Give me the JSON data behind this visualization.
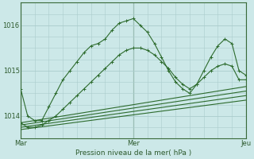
{
  "bg_color": "#cce8e8",
  "grid_color": "#aacccc",
  "line_color": "#2d6b2d",
  "marker_color": "#2d6b2d",
  "xlabel": "Pression niveau de la mer( hPa )",
  "xtick_labels": [
    "Mar",
    "Mer",
    "Jeu"
  ],
  "xtick_positions": [
    0,
    48,
    96
  ],
  "ylim": [
    1013.5,
    1016.5
  ],
  "ytick_positions": [
    1014,
    1015,
    1016
  ],
  "series": [
    {
      "x": [
        0,
        3,
        6,
        9,
        12,
        15,
        18,
        21,
        24,
        27,
        30,
        33,
        36,
        39,
        42,
        45,
        48,
        51,
        54,
        57,
        60,
        63,
        66,
        69,
        72,
        75,
        78,
        81,
        84,
        87,
        90,
        93,
        96
      ],
      "y": [
        1014.6,
        1014.0,
        1013.9,
        1013.9,
        1014.2,
        1014.5,
        1014.8,
        1015.0,
        1015.2,
        1015.4,
        1015.55,
        1015.6,
        1015.7,
        1015.9,
        1016.05,
        1016.1,
        1016.15,
        1016.0,
        1015.85,
        1015.6,
        1015.3,
        1015.0,
        1014.75,
        1014.6,
        1014.5,
        1014.7,
        1015.0,
        1015.3,
        1015.55,
        1015.7,
        1015.6,
        1015.0,
        1014.9
      ],
      "marker": "+"
    },
    {
      "x": [
        0,
        3,
        6,
        9,
        12,
        15,
        18,
        21,
        24,
        27,
        30,
        33,
        36,
        39,
        42,
        45,
        48,
        51,
        54,
        57,
        60,
        63,
        66,
        69,
        72,
        75,
        78,
        81,
        84,
        87,
        90,
        93,
        96
      ],
      "y": [
        1013.85,
        1013.75,
        1013.75,
        1013.8,
        1013.9,
        1014.0,
        1014.15,
        1014.3,
        1014.45,
        1014.6,
        1014.75,
        1014.9,
        1015.05,
        1015.2,
        1015.35,
        1015.45,
        1015.5,
        1015.5,
        1015.45,
        1015.35,
        1015.2,
        1015.05,
        1014.85,
        1014.7,
        1014.6,
        1014.7,
        1014.85,
        1015.0,
        1015.1,
        1015.15,
        1015.1,
        1014.8,
        1014.8
      ],
      "marker": "+"
    },
    {
      "x": [
        0,
        96
      ],
      "y": [
        1013.85,
        1014.65
      ],
      "marker": null
    },
    {
      "x": [
        0,
        96
      ],
      "y": [
        1013.8,
        1014.55
      ],
      "marker": null
    },
    {
      "x": [
        0,
        96
      ],
      "y": [
        1013.75,
        1014.45
      ],
      "marker": null
    },
    {
      "x": [
        0,
        96
      ],
      "y": [
        1013.7,
        1014.35
      ],
      "marker": null
    }
  ]
}
